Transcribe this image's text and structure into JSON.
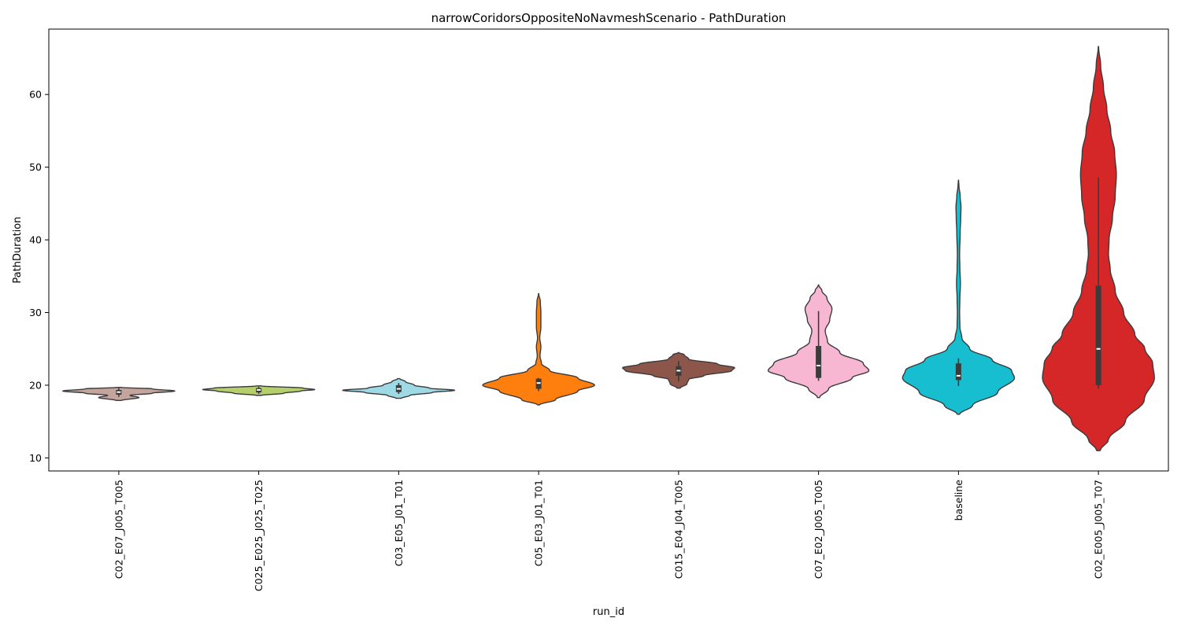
{
  "chart_data": {
    "type": "violin",
    "title": "narrowCoridorsOppositeNoNavmeshScenario - PathDuration",
    "xlabel": "run_id",
    "ylabel": "PathDuration",
    "ylim": [
      8.2,
      69.0
    ],
    "yticks": [
      10,
      20,
      30,
      40,
      50,
      60
    ],
    "grid": false,
    "categories": [
      "C02_E07_J005_T005",
      "C025_E025_J025_T025",
      "C03_E05_J01_T01",
      "C05_E03_J01_T01",
      "C015_E04_J04_T005",
      "C07_E02_J005_T005",
      "baseline",
      "C02_E005_J005_T07"
    ],
    "series": [
      {
        "color": "#c4a49c",
        "density": [
          [
            17.9,
            0.05
          ],
          [
            18.3,
            0.36
          ],
          [
            18.6,
            0.2
          ],
          [
            18.9,
            0.6
          ],
          [
            19.2,
            1.0
          ],
          [
            19.5,
            0.6
          ],
          [
            19.7,
            0.05
          ]
        ],
        "box": {
          "q1": 18.7,
          "median": 19.05,
          "q3": 19.35,
          "whisker_low": 18.4,
          "whisker_high": 19.6
        }
      },
      {
        "color": "#b5cf6b",
        "density": [
          [
            18.6,
            0.05
          ],
          [
            18.9,
            0.45
          ],
          [
            19.2,
            0.75
          ],
          [
            19.4,
            1.0
          ],
          [
            19.6,
            0.8
          ],
          [
            19.9,
            0.05
          ]
        ],
        "box": {
          "q1": 19.0,
          "median": 19.35,
          "q3": 19.6,
          "whisker_low": 18.8,
          "whisker_high": 19.8
        }
      },
      {
        "color": "#9edae5",
        "density": [
          [
            18.2,
            0.05
          ],
          [
            18.6,
            0.2
          ],
          [
            19.0,
            0.6
          ],
          [
            19.3,
            1.0
          ],
          [
            19.6,
            0.55
          ],
          [
            20.0,
            0.28
          ],
          [
            20.5,
            0.12
          ],
          [
            20.9,
            0.02
          ]
        ],
        "box": {
          "q1": 19.05,
          "median": 19.5,
          "q3": 20.0,
          "whisker_low": 18.8,
          "whisker_high": 20.3
        }
      },
      {
        "color": "#ff7f0e",
        "density": [
          [
            17.3,
            0.02
          ],
          [
            18.0,
            0.3
          ],
          [
            19.2,
            0.7
          ],
          [
            20.0,
            1.0
          ],
          [
            21.0,
            0.7
          ],
          [
            22.0,
            0.2
          ],
          [
            23.0,
            0.05
          ],
          [
            24.0,
            0.025
          ],
          [
            25.3,
            0.04
          ],
          [
            26.5,
            0.02
          ],
          [
            28.0,
            0.04
          ],
          [
            30.0,
            0.04
          ],
          [
            31.5,
            0.03
          ],
          [
            32.6,
            0.003
          ]
        ],
        "box": {
          "q1": 19.5,
          "median": 20.3,
          "q3": 20.9,
          "whisker_low": 19.2,
          "whisker_high": 21.0
        }
      },
      {
        "color": "#8c564b",
        "density": [
          [
            19.6,
            0.03
          ],
          [
            20.2,
            0.15
          ],
          [
            20.8,
            0.18
          ],
          [
            21.3,
            0.45
          ],
          [
            22.0,
            0.95
          ],
          [
            22.4,
            1.0
          ],
          [
            22.9,
            0.7
          ],
          [
            23.6,
            0.18
          ],
          [
            24.2,
            0.1
          ],
          [
            24.5,
            0.005
          ]
        ],
        "box": {
          "q1": 21.3,
          "median": 22.0,
          "q3": 22.6,
          "whisker_low": 20.5,
          "whisker_high": 23.3
        }
      },
      {
        "color": "#f7b6d2",
        "density": [
          [
            18.3,
            0.02
          ],
          [
            19.5,
            0.18
          ],
          [
            21.0,
            0.6
          ],
          [
            22.0,
            0.9
          ],
          [
            23.0,
            0.8
          ],
          [
            24.5,
            0.38
          ],
          [
            26.0,
            0.16
          ],
          [
            27.5,
            0.12
          ],
          [
            29.0,
            0.2
          ],
          [
            30.5,
            0.24
          ],
          [
            32.0,
            0.15
          ],
          [
            33.0,
            0.06
          ],
          [
            33.8,
            0.003
          ]
        ],
        "box": {
          "q1": 21.0,
          "median": 22.7,
          "q3": 25.4,
          "whisker_low": 20.6,
          "whisker_high": 30.2
        }
      },
      {
        "color": "#17becf",
        "density": [
          [
            16.0,
            0.02
          ],
          [
            17.2,
            0.25
          ],
          [
            19.0,
            0.7
          ],
          [
            21.0,
            1.0
          ],
          [
            22.0,
            0.95
          ],
          [
            23.5,
            0.6
          ],
          [
            25.0,
            0.2
          ],
          [
            26.5,
            0.06
          ],
          [
            28.0,
            0.025
          ],
          [
            30.0,
            0.02
          ],
          [
            32.0,
            0.025
          ],
          [
            34.0,
            0.035
          ],
          [
            36.0,
            0.025
          ],
          [
            38.0,
            0.02
          ],
          [
            41.0,
            0.03
          ],
          [
            43.0,
            0.04
          ],
          [
            44.5,
            0.045
          ],
          [
            46.0,
            0.03
          ],
          [
            47.5,
            0.008
          ],
          [
            48.2,
            0.002
          ]
        ],
        "box": {
          "q1": 20.7,
          "median": 21.3,
          "q3": 23.0,
          "whisker_low": 19.9,
          "whisker_high": 23.7
        }
      },
      {
        "color": "#d62728",
        "density": [
          [
            11.0,
            0.03
          ],
          [
            12.5,
            0.18
          ],
          [
            15.0,
            0.48
          ],
          [
            18.0,
            0.82
          ],
          [
            21.0,
            1.0
          ],
          [
            23.0,
            0.97
          ],
          [
            25.0,
            0.83
          ],
          [
            27.0,
            0.65
          ],
          [
            30.0,
            0.45
          ],
          [
            33.0,
            0.3
          ],
          [
            36.0,
            0.21
          ],
          [
            38.0,
            0.18
          ],
          [
            40.0,
            0.19
          ],
          [
            43.0,
            0.25
          ],
          [
            46.0,
            0.3
          ],
          [
            49.0,
            0.32
          ],
          [
            52.0,
            0.29
          ],
          [
            55.0,
            0.22
          ],
          [
            58.0,
            0.15
          ],
          [
            61.0,
            0.09
          ],
          [
            64.0,
            0.04
          ],
          [
            66.6,
            0.003
          ]
        ],
        "box": {
          "q1": 20.0,
          "median": 25.0,
          "q3": 33.7,
          "whisker_low": 19.5,
          "whisker_high": 48.6
        }
      }
    ]
  }
}
